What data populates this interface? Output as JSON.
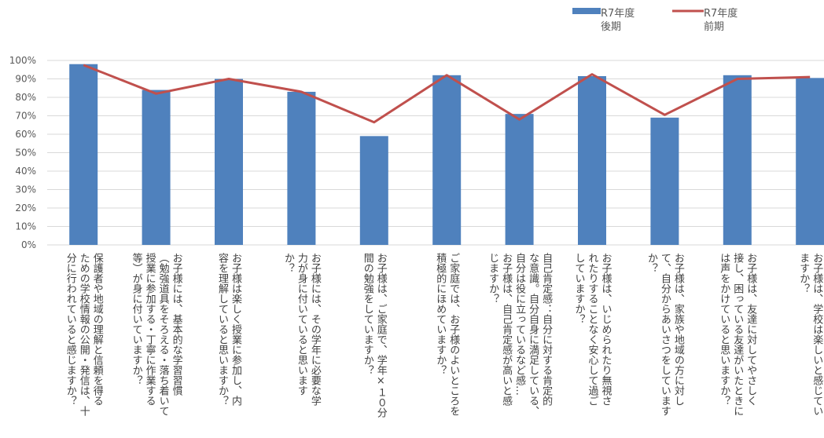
{
  "chart_data": {
    "type": "bar",
    "categories": [
      "保護者や地域の理解と信頼を得るための学校情報の公開・発信は、十分に行われていると感じますか？",
      "お子様には、基本的な学習習慣（勉強道具をそろえる・落ち着いて授業に参加する・丁寧に作業する等）が身に付いていますか？",
      "お子様は楽しく授業に参加し、内容を理解していると思いますか？",
      "お子様には、その学年に必要な学力が身に付いていると思いますか？",
      "お子様は、ご家庭で、学年×１０分間の勉強をしていますか？",
      "ご家庭では、お子様のよいところを積極的にほめていますか？",
      "自己肯定感：自分に対する肯定的な意識。自分自身に満足している、自分は役に立っているなど感…",
      "お子様は、いじめられたり無視されたりすることなく安心して過ごしていますか？",
      "お子様は、家族や地域の方に対して、自分からあいさつをしていますか？",
      "お子様は、友達に対してやさしく接し、困っている友達がいたときには声をかけていると思いますか？",
      "お子様は、学校は楽しいと感じていますか？"
    ],
    "label_lines": [
      [
        "保護者や地域の理解と信頼を得る",
        "ための学校情報の公開・発信は、十",
        "分に行われていると感じますか？"
      ],
      [
        "お子様には、基本的な学習習慣",
        "（勉強道具をそろえる・落ち着いて",
        "授業に参加する・丁寧に作業する",
        "等）が身に付いていますか？"
      ],
      [
        "お子様は楽しく授業に参加し、内",
        "容を理解していると思いますか？"
      ],
      [
        "お子様には、その学年に必要な学",
        "力が身に付いていると思います",
        "か？"
      ],
      [
        "お子様は、ご家庭で、学年×１０分",
        "間の勉強をしていますか？"
      ],
      [
        "ご家庭では、お子様のよいところを",
        "積極的にほめていますか？"
      ],
      [
        "自己肯定感：自分に対する肯定的",
        "な意識。自分自身に満足している、",
        "自分は役に立っているなど感…",
        "お子様は、自己肯定感が高いと感",
        "じますか？"
      ],
      [
        "お子様は、いじめられたり無視さ",
        "れたりすることなく安心して過ご",
        "していますか？"
      ],
      [
        "お子様は、家族や地域の方に対し",
        "て、自分からあいさつをしています",
        "か？"
      ],
      [
        "お子様は、友達に対してやさしく",
        "接し、困っている友達がいたときに",
        "は声をかけていると思いますか？"
      ],
      [
        "お子様は、学校は楽しいと感じてい",
        "ますか？"
      ]
    ],
    "series": [
      {
        "name": "R7年度\n後期",
        "type": "bar",
        "color": "#4f81bd",
        "values": [
          98,
          84,
          90,
          83,
          59,
          92,
          71,
          91.5,
          69,
          92,
          90.5
        ]
      },
      {
        "name": "R7年度\n前期",
        "type": "line",
        "color": "#c0504d",
        "values": [
          97.5,
          82,
          90,
          83,
          66.5,
          92,
          68,
          92.5,
          70.5,
          90,
          91
        ]
      }
    ],
    "ylim": [
      0,
      100
    ],
    "yticks": [
      "0%",
      "10%",
      "20%",
      "30%",
      "40%",
      "50%",
      "60%",
      "70%",
      "80%",
      "90%",
      "100%"
    ],
    "grid": true,
    "legend": "top-right"
  }
}
